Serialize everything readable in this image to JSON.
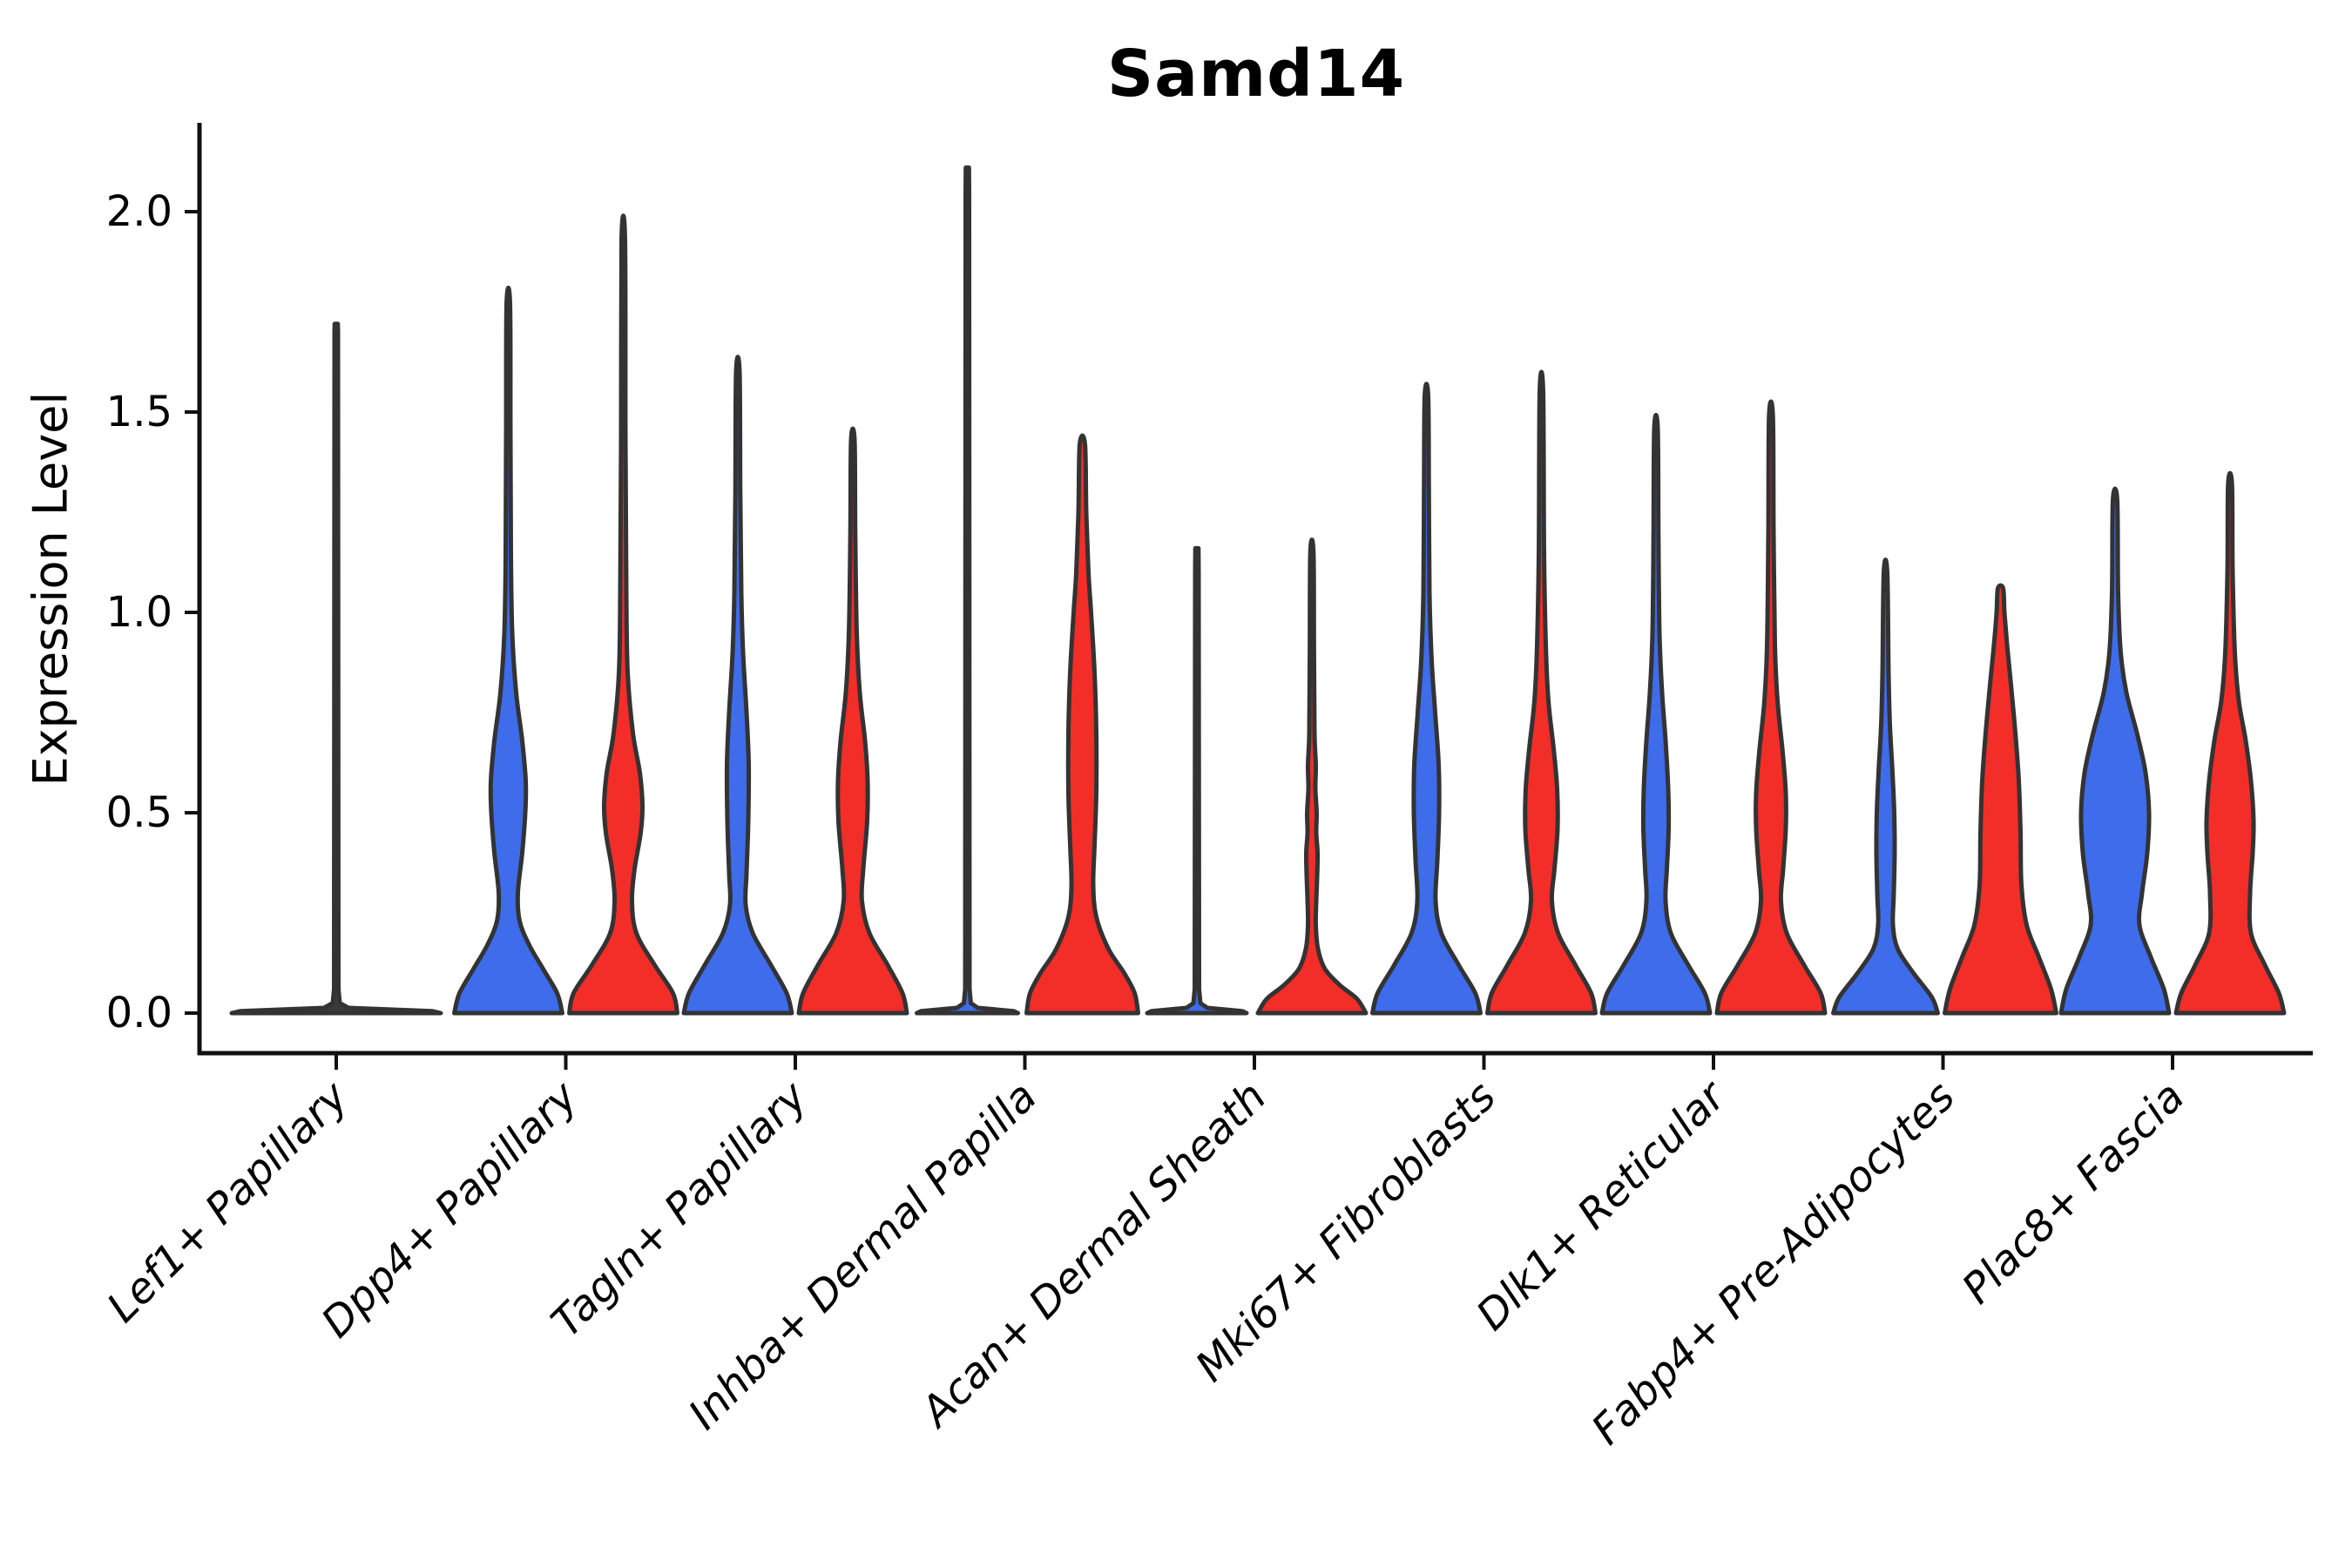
{
  "chart_data": {
    "type": "violin",
    "title": "Samd14",
    "ylabel": "Expression Level",
    "categories": [
      "Lef1+ Papillary",
      "Dpp4+ Papillary",
      "Tagln+ Papillary",
      "Inhba+ Dermal Papilla",
      "Acan+ Dermal Sheath",
      "Mki67+ Fibroblasts",
      "Dlk1+ Reticular",
      "Fabp4+ Pre-Adipocytes",
      "Plac8+ Fascia"
    ],
    "y_ticks": [
      "0.0",
      "0.5",
      "1.0",
      "1.5",
      "2.0"
    ],
    "y_tick_values": [
      0.0,
      0.5,
      1.0,
      1.5,
      2.0
    ],
    "ylim": [
      -0.1,
      2.22
    ],
    "x_tick_rotation": 45,
    "grid": false,
    "legend": "none",
    "series": [
      {
        "name": "blue",
        "color": "#3E6CEB"
      },
      {
        "name": "red",
        "color": "#F32D28"
      }
    ],
    "edge_color": "#333333",
    "axis_color": "#111111",
    "violins": [
      {
        "category": 0,
        "series": "single",
        "flat": true,
        "max": 1.72,
        "profile": [
          [
            0,
            120
          ],
          [
            0.005,
            110
          ],
          [
            0.013,
            14
          ],
          [
            0.025,
            4
          ],
          [
            0.06,
            2.5
          ],
          [
            1.7,
            2
          ],
          [
            1.72,
            1.8
          ]
        ]
      },
      {
        "category": 1,
        "series": "blue",
        "max": 1.77,
        "profile": [
          [
            0,
            62
          ],
          [
            0.05,
            56
          ],
          [
            0.11,
            40
          ],
          [
            0.17,
            24
          ],
          [
            0.23,
            13
          ],
          [
            0.3,
            11
          ],
          [
            0.4,
            16
          ],
          [
            0.5,
            19.5
          ],
          [
            0.58,
            20
          ],
          [
            0.68,
            16
          ],
          [
            0.8,
            9
          ],
          [
            0.95,
            4.5
          ],
          [
            1.15,
            3
          ],
          [
            1.45,
            2.5
          ],
          [
            1.77,
            2
          ]
        ]
      },
      {
        "category": 1,
        "series": "red",
        "max": 1.93,
        "profile": [
          [
            0,
            62
          ],
          [
            0.05,
            57
          ],
          [
            0.12,
            36
          ],
          [
            0.2,
            15
          ],
          [
            0.28,
            10
          ],
          [
            0.36,
            13
          ],
          [
            0.45,
            20
          ],
          [
            0.52,
            22
          ],
          [
            0.6,
            19
          ],
          [
            0.7,
            11
          ],
          [
            0.85,
            5
          ],
          [
            1.05,
            3.5
          ],
          [
            1.45,
            2.5
          ],
          [
            1.93,
            2
          ]
        ]
      },
      {
        "category": 2,
        "series": "blue",
        "max": 1.6,
        "profile": [
          [
            0,
            62
          ],
          [
            0.05,
            56
          ],
          [
            0.12,
            38
          ],
          [
            0.2,
            17
          ],
          [
            0.27,
            9
          ],
          [
            0.35,
            10
          ],
          [
            0.48,
            12
          ],
          [
            0.62,
            12.5
          ],
          [
            0.75,
            10
          ],
          [
            0.9,
            6
          ],
          [
            1.05,
            4
          ],
          [
            1.3,
            2.8
          ],
          [
            1.6,
            2
          ]
        ]
      },
      {
        "category": 2,
        "series": "red",
        "max": 1.43,
        "profile": [
          [
            0,
            62
          ],
          [
            0.05,
            57
          ],
          [
            0.12,
            40
          ],
          [
            0.2,
            19
          ],
          [
            0.28,
            10.5
          ],
          [
            0.36,
            12
          ],
          [
            0.48,
            16.5
          ],
          [
            0.58,
            17
          ],
          [
            0.68,
            14
          ],
          [
            0.8,
            8
          ],
          [
            0.95,
            4.5
          ],
          [
            1.2,
            2.8
          ],
          [
            1.43,
            2
          ]
        ]
      },
      {
        "category": 3,
        "series": "blue",
        "flat": true,
        "max": 2.11,
        "profile": [
          [
            0,
            58
          ],
          [
            0.005,
            53
          ],
          [
            0.013,
            12
          ],
          [
            0.025,
            4
          ],
          [
            0.06,
            2.5
          ],
          [
            2.05,
            2
          ],
          [
            2.11,
            1.8
          ]
        ]
      },
      {
        "category": 3,
        "series": "red",
        "max": 1.42,
        "profile": [
          [
            0,
            64
          ],
          [
            0.05,
            60
          ],
          [
            0.1,
            48
          ],
          [
            0.16,
            30
          ],
          [
            0.24,
            16
          ],
          [
            0.32,
            12.5
          ],
          [
            0.42,
            14
          ],
          [
            0.55,
            16
          ],
          [
            0.7,
            16
          ],
          [
            0.85,
            14
          ],
          [
            1.0,
            10
          ],
          [
            1.1,
            7
          ],
          [
            1.25,
            4.5
          ],
          [
            1.42,
            3
          ]
        ]
      },
      {
        "category": 4,
        "series": "blue",
        "flat": true,
        "max": 1.16,
        "profile": [
          [
            0,
            57
          ],
          [
            0.005,
            52
          ],
          [
            0.013,
            12
          ],
          [
            0.025,
            4
          ],
          [
            0.06,
            2.5
          ],
          [
            1.1,
            2
          ],
          [
            1.16,
            1.8
          ]
        ]
      },
      {
        "category": 4,
        "series": "red",
        "max": 1.15,
        "profile": [
          [
            0,
            62
          ],
          [
            0.035,
            52
          ],
          [
            0.07,
            32
          ],
          [
            0.11,
            15
          ],
          [
            0.16,
            7
          ],
          [
            0.22,
            4.5
          ],
          [
            0.28,
            5
          ],
          [
            0.34,
            6
          ],
          [
            0.4,
            6.5
          ],
          [
            0.45,
            5
          ],
          [
            0.5,
            5.5
          ],
          [
            0.56,
            4
          ],
          [
            0.62,
            4.5
          ],
          [
            0.7,
            3
          ],
          [
            0.9,
            2.4
          ],
          [
            1.15,
            1.8
          ]
        ]
      },
      {
        "category": 5,
        "series": "blue",
        "max": 1.54,
        "profile": [
          [
            0,
            62
          ],
          [
            0.05,
            56
          ],
          [
            0.12,
            37
          ],
          [
            0.2,
            17
          ],
          [
            0.28,
            10.5
          ],
          [
            0.38,
            12.5
          ],
          [
            0.5,
            14.5
          ],
          [
            0.62,
            14
          ],
          [
            0.75,
            10
          ],
          [
            0.88,
            6
          ],
          [
            1.05,
            3.5
          ],
          [
            1.3,
            2.8
          ],
          [
            1.54,
            2
          ]
        ]
      },
      {
        "category": 5,
        "series": "red",
        "max": 1.55,
        "profile": [
          [
            0,
            62
          ],
          [
            0.05,
            57
          ],
          [
            0.12,
            39
          ],
          [
            0.2,
            19
          ],
          [
            0.28,
            12
          ],
          [
            0.36,
            15
          ],
          [
            0.46,
            18.5
          ],
          [
            0.56,
            18
          ],
          [
            0.66,
            14
          ],
          [
            0.78,
            8
          ],
          [
            0.92,
            5
          ],
          [
            1.15,
            3
          ],
          [
            1.55,
            2
          ]
        ]
      },
      {
        "category": 6,
        "series": "blue",
        "max": 1.46,
        "profile": [
          [
            0,
            62
          ],
          [
            0.05,
            56
          ],
          [
            0.12,
            37
          ],
          [
            0.2,
            17
          ],
          [
            0.28,
            11
          ],
          [
            0.36,
            12.5
          ],
          [
            0.46,
            14.5
          ],
          [
            0.56,
            14
          ],
          [
            0.68,
            11
          ],
          [
            0.8,
            7
          ],
          [
            0.95,
            4
          ],
          [
            1.2,
            2.8
          ],
          [
            1.46,
            2
          ]
        ]
      },
      {
        "category": 6,
        "series": "red",
        "max": 1.49,
        "profile": [
          [
            0,
            62
          ],
          [
            0.05,
            57
          ],
          [
            0.12,
            38
          ],
          [
            0.2,
            18
          ],
          [
            0.28,
            11.5
          ],
          [
            0.36,
            14
          ],
          [
            0.46,
            17
          ],
          [
            0.55,
            17
          ],
          [
            0.65,
            13.5
          ],
          [
            0.78,
            7.5
          ],
          [
            0.92,
            4.5
          ],
          [
            1.2,
            3
          ],
          [
            1.49,
            2.2
          ]
        ]
      },
      {
        "category": 7,
        "series": "blue",
        "max": 1.1,
        "profile": [
          [
            0,
            60
          ],
          [
            0.04,
            53
          ],
          [
            0.1,
            32
          ],
          [
            0.16,
            14
          ],
          [
            0.22,
            8.5
          ],
          [
            0.3,
            9.5
          ],
          [
            0.4,
            10.5
          ],
          [
            0.5,
            10
          ],
          [
            0.6,
            8
          ],
          [
            0.72,
            5
          ],
          [
            0.85,
            3.5
          ],
          [
            1.1,
            2
          ]
        ]
      },
      {
        "category": 7,
        "series": "red",
        "max": 1.06,
        "profile": [
          [
            0,
            64
          ],
          [
            0.06,
            58
          ],
          [
            0.14,
            44
          ],
          [
            0.22,
            30
          ],
          [
            0.32,
            24
          ],
          [
            0.45,
            23
          ],
          [
            0.58,
            21
          ],
          [
            0.7,
            17
          ],
          [
            0.82,
            12
          ],
          [
            0.92,
            7.5
          ],
          [
            1.0,
            4.5
          ],
          [
            1.06,
            3
          ]
        ]
      },
      {
        "category": 8,
        "series": "blue",
        "max": 1.28,
        "profile": [
          [
            0,
            62
          ],
          [
            0.06,
            56
          ],
          [
            0.14,
            41
          ],
          [
            0.22,
            28
          ],
          [
            0.3,
            31
          ],
          [
            0.4,
            37
          ],
          [
            0.5,
            39
          ],
          [
            0.6,
            35
          ],
          [
            0.7,
            25
          ],
          [
            0.8,
            13
          ],
          [
            0.9,
            6.5
          ],
          [
            1.05,
            3.5
          ],
          [
            1.28,
            2.5
          ]
        ]
      },
      {
        "category": 8,
        "series": "red",
        "max": 1.32,
        "profile": [
          [
            0,
            62
          ],
          [
            0.05,
            56
          ],
          [
            0.12,
            40
          ],
          [
            0.2,
            24
          ],
          [
            0.3,
            23
          ],
          [
            0.4,
            26
          ],
          [
            0.48,
            27
          ],
          [
            0.58,
            24
          ],
          [
            0.68,
            18
          ],
          [
            0.78,
            10
          ],
          [
            0.9,
            5.5
          ],
          [
            1.1,
            3
          ],
          [
            1.32,
            2.2
          ]
        ]
      }
    ]
  }
}
